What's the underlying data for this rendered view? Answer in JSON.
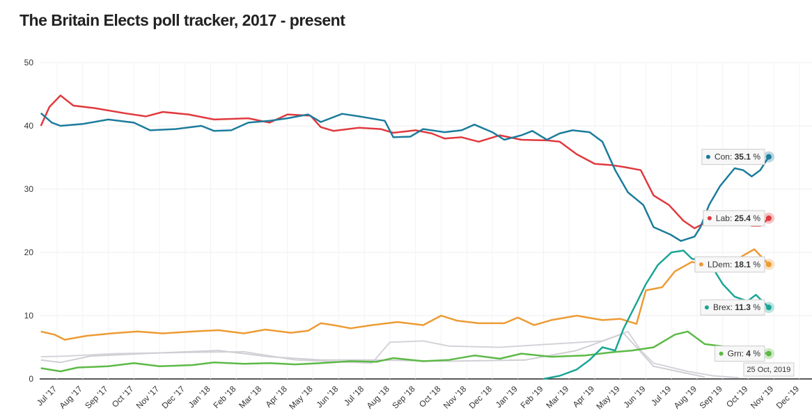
{
  "title": "The Britain Elects poll tracker, 2017 - present",
  "tooltip_date": "25 Oct, 2019",
  "chart_data": {
    "type": "line",
    "title": "The Britain Elects poll tracker, 2017 - present",
    "ylim": [
      0,
      50
    ],
    "yticks": [
      0,
      10,
      20,
      30,
      40,
      50
    ],
    "xticks": [
      "Jul '17",
      "Aug '17",
      "Sep '17",
      "Oct '17",
      "Nov '17",
      "Dec '17",
      "Jan '18",
      "Feb '18",
      "Mar '18",
      "Apr '18",
      "May '18",
      "Jun '18",
      "Jul '18",
      "Aug '18",
      "Sep '18",
      "Oct '18",
      "Nov '18",
      "Dec '18",
      "Jan '19",
      "Feb '19",
      "Mar '19",
      "Apr '19",
      "May '19",
      "Jun '19",
      "Jul '19",
      "Aug '19",
      "Sep '19",
      "Oct '19",
      "Nov '19",
      "Dec '19"
    ],
    "grid": true,
    "series": [
      {
        "name": "Con",
        "color": "#1b7c9c",
        "final_label": "35.1",
        "points": [
          [
            "2017-06-12",
            42
          ],
          [
            "2017-06-25",
            40.5
          ],
          [
            "2017-07-05",
            40
          ],
          [
            "2017-08-01",
            40.3
          ],
          [
            "2017-09-01",
            41
          ],
          [
            "2017-10-01",
            40.5
          ],
          [
            "2017-10-20",
            39.3
          ],
          [
            "2017-11-20",
            39.5
          ],
          [
            "2017-12-20",
            40
          ],
          [
            "2018-01-05",
            39.2
          ],
          [
            "2018-01-25",
            39.3
          ],
          [
            "2018-02-15",
            40.5
          ],
          [
            "2018-03-10",
            40.8
          ],
          [
            "2018-04-01",
            41.2
          ],
          [
            "2018-04-25",
            41.8
          ],
          [
            "2018-05-10",
            40.6
          ],
          [
            "2018-06-05",
            41.9
          ],
          [
            "2018-06-25",
            41.5
          ],
          [
            "2018-07-25",
            40.8
          ],
          [
            "2018-08-05",
            38.2
          ],
          [
            "2018-08-25",
            38.3
          ],
          [
            "2018-09-10",
            39.5
          ],
          [
            "2018-10-05",
            39
          ],
          [
            "2018-10-25",
            39.3
          ],
          [
            "2018-11-10",
            40.2
          ],
          [
            "2018-12-01",
            39
          ],
          [
            "2018-12-15",
            37.8
          ],
          [
            "2019-01-05",
            38.5
          ],
          [
            "2019-01-18",
            39.2
          ],
          [
            "2019-02-05",
            37.8
          ],
          [
            "2019-02-20",
            38.8
          ],
          [
            "2019-03-05",
            39.3
          ],
          [
            "2019-03-25",
            39
          ],
          [
            "2019-04-10",
            37.5
          ],
          [
            "2019-04-25",
            33
          ],
          [
            "2019-05-10",
            29.5
          ],
          [
            "2019-05-28",
            27.5
          ],
          [
            "2019-06-10",
            24
          ],
          [
            "2019-06-30",
            22.8
          ],
          [
            "2019-07-12",
            21.8
          ],
          [
            "2019-07-28",
            22.5
          ],
          [
            "2019-08-05",
            24
          ],
          [
            "2019-08-15",
            27.5
          ],
          [
            "2019-08-28",
            30.5
          ],
          [
            "2019-09-15",
            33.3
          ],
          [
            "2019-09-25",
            33
          ],
          [
            "2019-10-05",
            32
          ],
          [
            "2019-10-15",
            33
          ],
          [
            "2019-10-25",
            35.1
          ]
        ]
      },
      {
        "name": "Lab",
        "color": "#e0393e",
        "final_label": "25.4",
        "points": [
          [
            "2017-06-12",
            40
          ],
          [
            "2017-06-22",
            43
          ],
          [
            "2017-07-05",
            44.8
          ],
          [
            "2017-07-20",
            43.2
          ],
          [
            "2017-08-15",
            42.8
          ],
          [
            "2017-09-20",
            42
          ],
          [
            "2017-10-15",
            41.5
          ],
          [
            "2017-11-05",
            42.2
          ],
          [
            "2017-12-05",
            41.8
          ],
          [
            "2018-01-05",
            41
          ],
          [
            "2018-02-15",
            41.2
          ],
          [
            "2018-03-10",
            40.5
          ],
          [
            "2018-04-01",
            41.8
          ],
          [
            "2018-04-28",
            41.6
          ],
          [
            "2018-05-10",
            39.8
          ],
          [
            "2018-05-25",
            39.2
          ],
          [
            "2018-06-25",
            39.7
          ],
          [
            "2018-07-20",
            39.5
          ],
          [
            "2018-08-05",
            38.9
          ],
          [
            "2018-09-01",
            39.3
          ],
          [
            "2018-09-20",
            38.8
          ],
          [
            "2018-10-05",
            38
          ],
          [
            "2018-10-25",
            38.2
          ],
          [
            "2018-11-15",
            37.5
          ],
          [
            "2018-12-10",
            38.5
          ],
          [
            "2019-01-05",
            37.8
          ],
          [
            "2019-02-05",
            37.7
          ],
          [
            "2019-02-20",
            37.5
          ],
          [
            "2019-03-10",
            35.5
          ],
          [
            "2019-04-01",
            34
          ],
          [
            "2019-04-20",
            33.8
          ],
          [
            "2019-05-05",
            33.5
          ],
          [
            "2019-05-25",
            33
          ],
          [
            "2019-06-10",
            29
          ],
          [
            "2019-06-28",
            27.5
          ],
          [
            "2019-07-15",
            25
          ],
          [
            "2019-07-28",
            23.8
          ],
          [
            "2019-08-15",
            25
          ],
          [
            "2019-09-01",
            25.4
          ],
          [
            "2019-09-20",
            25.2
          ],
          [
            "2019-10-05",
            24.2
          ],
          [
            "2019-10-15",
            24.2
          ],
          [
            "2019-10-25",
            25.4
          ]
        ]
      },
      {
        "name": "LDem",
        "color": "#ed9b33",
        "final_label": "18.1",
        "points": [
          [
            "2017-06-12",
            7.5
          ],
          [
            "2017-06-28",
            7
          ],
          [
            "2017-07-10",
            6.2
          ],
          [
            "2017-08-05",
            6.8
          ],
          [
            "2017-09-05",
            7.2
          ],
          [
            "2017-10-05",
            7.5
          ],
          [
            "2017-11-05",
            7.2
          ],
          [
            "2017-12-10",
            7.5
          ],
          [
            "2018-01-10",
            7.7
          ],
          [
            "2018-02-10",
            7.2
          ],
          [
            "2018-03-05",
            7.8
          ],
          [
            "2018-04-05",
            7.3
          ],
          [
            "2018-04-25",
            7.6
          ],
          [
            "2018-05-10",
            8.8
          ],
          [
            "2018-05-25",
            8.5
          ],
          [
            "2018-06-15",
            8
          ],
          [
            "2018-07-10",
            8.5
          ],
          [
            "2018-08-10",
            9
          ],
          [
            "2018-09-10",
            8.5
          ],
          [
            "2018-10-01",
            10
          ],
          [
            "2018-10-20",
            9.2
          ],
          [
            "2018-11-15",
            8.8
          ],
          [
            "2018-12-15",
            8.8
          ],
          [
            "2019-01-01",
            9.7
          ],
          [
            "2019-01-20",
            8.5
          ],
          [
            "2019-02-10",
            9.3
          ],
          [
            "2019-03-10",
            10
          ],
          [
            "2019-04-10",
            9.3
          ],
          [
            "2019-05-01",
            9.5
          ],
          [
            "2019-05-20",
            8.7
          ],
          [
            "2019-06-01",
            14
          ],
          [
            "2019-06-20",
            14.5
          ],
          [
            "2019-07-05",
            17
          ],
          [
            "2019-07-25",
            18.5
          ],
          [
            "2019-08-10",
            18
          ],
          [
            "2019-09-10",
            18
          ],
          [
            "2019-09-25",
            19.5
          ],
          [
            "2019-10-08",
            20.5
          ],
          [
            "2019-10-15",
            19.5
          ],
          [
            "2019-10-25",
            18.1
          ]
        ]
      },
      {
        "name": "Brex",
        "color": "#1aa595",
        "final_label": "11.3",
        "points": [
          [
            "2019-02-01",
            0
          ],
          [
            "2019-02-20",
            0.5
          ],
          [
            "2019-03-10",
            1.5
          ],
          [
            "2019-03-25",
            3
          ],
          [
            "2019-04-10",
            5
          ],
          [
            "2019-04-25",
            4.5
          ],
          [
            "2019-05-05",
            8
          ],
          [
            "2019-05-20",
            12
          ],
          [
            "2019-06-01",
            15
          ],
          [
            "2019-06-15",
            18
          ],
          [
            "2019-07-01",
            20
          ],
          [
            "2019-07-15",
            20.3
          ],
          [
            "2019-07-25",
            19
          ],
          [
            "2019-08-15",
            18.5
          ],
          [
            "2019-09-01",
            15
          ],
          [
            "2019-09-15",
            13
          ],
          [
            "2019-09-30",
            12.3
          ],
          [
            "2019-10-10",
            13.3
          ],
          [
            "2019-10-25",
            11.3
          ]
        ]
      },
      {
        "name": "Grn",
        "color": "#5cb946",
        "final_label": "4",
        "points": [
          [
            "2017-06-12",
            1.7
          ],
          [
            "2017-07-05",
            1.2
          ],
          [
            "2017-07-25",
            1.8
          ],
          [
            "2017-09-01",
            2
          ],
          [
            "2017-10-01",
            2.5
          ],
          [
            "2017-11-01",
            2
          ],
          [
            "2017-12-10",
            2.2
          ],
          [
            "2018-01-05",
            2.6
          ],
          [
            "2018-02-10",
            2.4
          ],
          [
            "2018-03-10",
            2.5
          ],
          [
            "2018-04-10",
            2.3
          ],
          [
            "2018-05-10",
            2.5
          ],
          [
            "2018-06-15",
            2.8
          ],
          [
            "2018-07-15",
            2.7
          ],
          [
            "2018-08-05",
            3.3
          ],
          [
            "2018-09-10",
            2.8
          ],
          [
            "2018-10-10",
            3
          ],
          [
            "2018-11-10",
            3.7
          ],
          [
            "2018-12-10",
            3.2
          ],
          [
            "2019-01-05",
            4
          ],
          [
            "2019-02-10",
            3.5
          ],
          [
            "2019-03-20",
            3.7
          ],
          [
            "2019-04-20",
            4.2
          ],
          [
            "2019-05-15",
            4.5
          ],
          [
            "2019-06-10",
            5
          ],
          [
            "2019-07-05",
            7
          ],
          [
            "2019-07-20",
            7.5
          ],
          [
            "2019-08-10",
            5.5
          ],
          [
            "2019-09-10",
            5
          ],
          [
            "2019-10-10",
            4.3
          ],
          [
            "2019-10-25",
            4
          ]
        ]
      },
      {
        "color": "#d7d2da",
        "points": [
          [
            "2017-06-12",
            3.5
          ],
          [
            "2017-07-10",
            3.6
          ],
          [
            "2017-09-10",
            4
          ],
          [
            "2017-12-10",
            4.2
          ],
          [
            "2018-02-10",
            4.3
          ],
          [
            "2018-04-10",
            3
          ],
          [
            "2018-07-10",
            2.5
          ],
          [
            "2018-08-01",
            5.8
          ],
          [
            "2018-09-10",
            6
          ],
          [
            "2018-10-10",
            5.2
          ],
          [
            "2018-12-10",
            5
          ],
          [
            "2019-02-10",
            5.5
          ],
          [
            "2019-04-10",
            6
          ],
          [
            "2019-05-10",
            7.5
          ],
          [
            "2019-05-25",
            4.5
          ],
          [
            "2019-06-10",
            2.5
          ],
          [
            "2019-07-20",
            1.2
          ],
          [
            "2019-08-20",
            0.5
          ],
          [
            "2019-09-20",
            0.2
          ]
        ]
      },
      {
        "color": "#cfcfd4",
        "points": [
          [
            "2017-06-12",
            3
          ],
          [
            "2017-07-05",
            2.6
          ],
          [
            "2017-08-10",
            3.6
          ],
          [
            "2017-10-10",
            4
          ],
          [
            "2018-01-10",
            4.5
          ],
          [
            "2018-03-10",
            3.5
          ],
          [
            "2018-05-10",
            3
          ],
          [
            "2018-07-10",
            3
          ],
          [
            "2018-10-10",
            2.8
          ],
          [
            "2019-01-10",
            3
          ],
          [
            "2019-03-10",
            4.5
          ],
          [
            "2019-05-05",
            7.2
          ],
          [
            "2019-05-20",
            5
          ],
          [
            "2019-06-10",
            2
          ],
          [
            "2019-07-15",
            1
          ],
          [
            "2019-08-10",
            0.3
          ]
        ]
      }
    ]
  }
}
